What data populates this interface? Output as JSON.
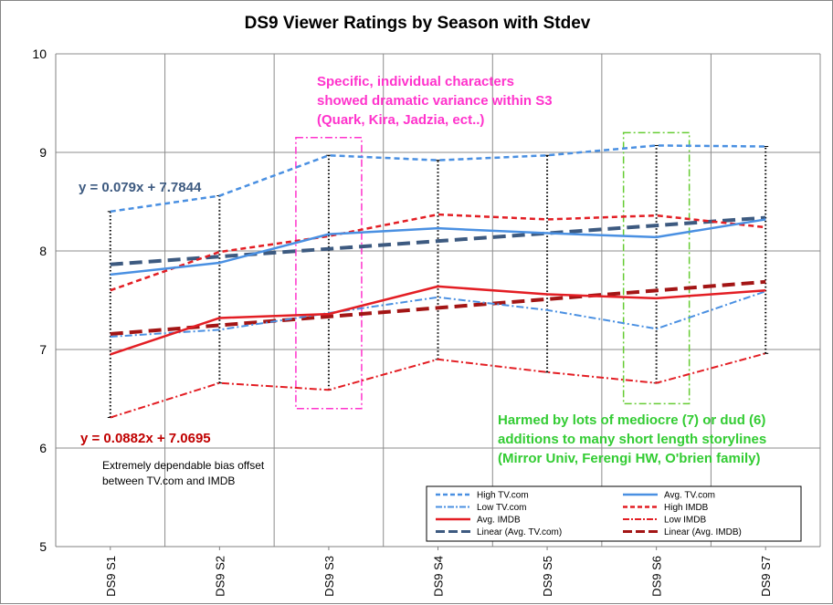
{
  "chart_data": {
    "type": "line",
    "title": "DS9 Viewer Ratings by Season with Stdev",
    "xlabel": "",
    "ylabel": "",
    "categories": [
      "DS9 S1",
      "DS9 S2",
      "DS9 S3",
      "DS9 S4",
      "DS9 S5",
      "DS9 S6",
      "DS9 S7"
    ],
    "ylim": [
      5,
      10
    ],
    "yticks": [
      5,
      6,
      7,
      8,
      9,
      10
    ],
    "grid": "horizontal and vertical",
    "legend_position": "bottom-right",
    "series": [
      {
        "name": "High TV.com",
        "values": [
          8.4,
          8.56,
          8.97,
          8.92,
          8.97,
          9.07,
          9.06
        ],
        "color": "#4a90e2",
        "style": "dashed"
      },
      {
        "name": "Avg. TV.com",
        "values": [
          7.76,
          7.88,
          8.17,
          8.23,
          8.18,
          8.14,
          8.32
        ],
        "color": "#4a90e2",
        "style": "solid"
      },
      {
        "name": "Low TV.com",
        "values": [
          7.13,
          7.2,
          7.37,
          7.53,
          7.4,
          7.21,
          7.59
        ],
        "color": "#4a90e2",
        "style": "dashdot"
      },
      {
        "name": "High IMDB",
        "values": [
          7.6,
          7.99,
          8.15,
          8.37,
          8.32,
          8.36,
          8.24
        ],
        "color": "#e31e24",
        "style": "dashed"
      },
      {
        "name": "Avg. IMDB",
        "values": [
          6.95,
          7.32,
          7.36,
          7.64,
          7.56,
          7.52,
          7.6
        ],
        "color": "#e31e24",
        "style": "solid"
      },
      {
        "name": "Low IMDB",
        "values": [
          6.31,
          6.66,
          6.59,
          6.9,
          6.77,
          6.66,
          6.96
        ],
        "color": "#e31e24",
        "style": "dashdot"
      },
      {
        "name": "Linear (Avg. TV.com)",
        "values": [
          7.8634,
          7.9424,
          8.0214,
          8.1004,
          8.1794,
          8.2584,
          8.3374
        ],
        "color": "#3d5a80",
        "style": "longdash"
      },
      {
        "name": "Linear (Avg. IMDB)",
        "values": [
          7.1577,
          7.2459,
          7.3341,
          7.4223,
          7.5105,
          7.5987,
          7.6869
        ],
        "color": "#a31515",
        "style": "longdash"
      }
    ],
    "error_bars": {
      "from": "Low IMDB",
      "to": "High TV.com",
      "style": "dotted",
      "color": "#000000"
    },
    "highlight_boxes": [
      {
        "category": "DS9 S3",
        "y_range": [
          6.4,
          9.15
        ],
        "color": "#ff33cc"
      },
      {
        "category": "DS9 S6",
        "y_range": [
          6.45,
          9.2
        ],
        "color": "#66cc33"
      }
    ],
    "annotations": {
      "eq_tv": "y = 0.079x + 7.7844",
      "eq_imdb": "y = 0.0882x + 7.0695",
      "s3_note": [
        "Specific, individual characters",
        "showed dramatic variance within S3",
        "(Quark, Kira, Jadzia, ect..)"
      ],
      "s6_note": [
        "Harmed by lots of mediocre (7) or dud (6)",
        "additions to many short length storylines",
        "(Mirror Univ, Ferengi HW, O'brien family)"
      ],
      "bias_note": [
        "Extremely dependable bias offset",
        "between TV.com and IMDB"
      ]
    },
    "colors": {
      "eq_tv": "#3d5a80",
      "eq_imdb": "#c00000",
      "s3_note": "#ff33cc",
      "s6_note": "#33cc33"
    }
  }
}
